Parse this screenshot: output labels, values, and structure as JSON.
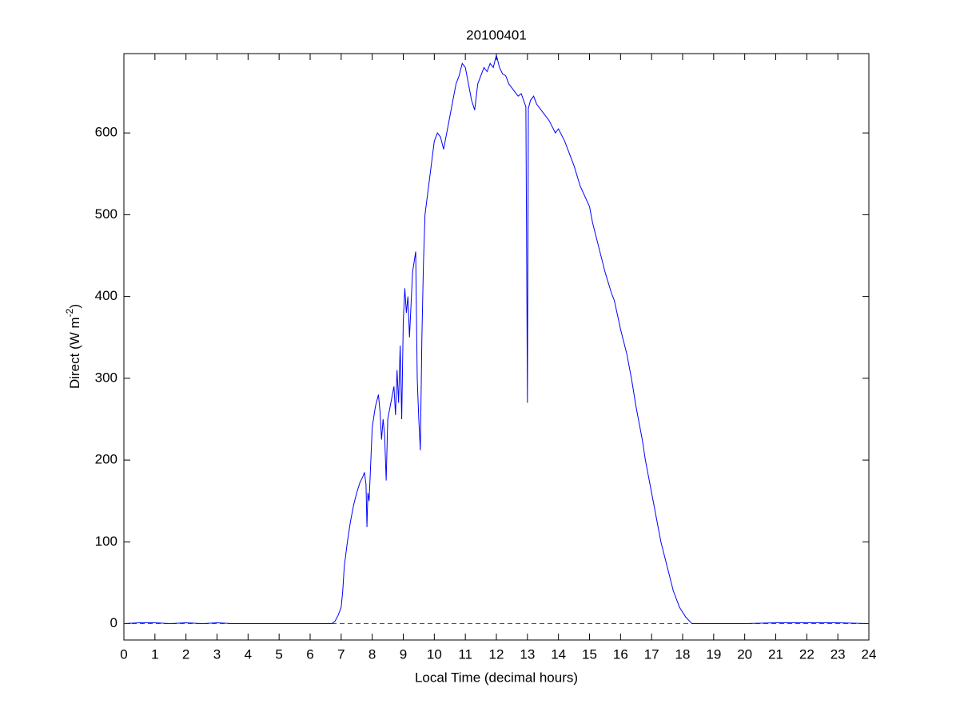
{
  "chart_data": {
    "type": "line",
    "title": "20100401",
    "xlabel": "Local Time (decimal hours)",
    "ylabel": {
      "text": "Direct (W m",
      "superscript": "-2",
      "suffix": ")"
    },
    "x": [
      0,
      0.5,
      1,
      1.5,
      2,
      2.5,
      3,
      3.5,
      4,
      5,
      6,
      6.7,
      6.8,
      6.9,
      7.0,
      7.05,
      7.1,
      7.2,
      7.3,
      7.4,
      7.5,
      7.6,
      7.7,
      7.75,
      7.8,
      7.83,
      7.86,
      7.9,
      8.0,
      8.1,
      8.2,
      8.25,
      8.3,
      8.35,
      8.4,
      8.45,
      8.5,
      8.6,
      8.7,
      8.75,
      8.8,
      8.85,
      8.9,
      8.95,
      9.0,
      9.05,
      9.1,
      9.15,
      9.2,
      9.3,
      9.4,
      9.45,
      9.5,
      9.55,
      9.6,
      9.65,
      9.7,
      9.8,
      9.9,
      10.0,
      10.1,
      10.2,
      10.3,
      10.4,
      10.5,
      10.6,
      10.7,
      10.8,
      10.9,
      11.0,
      11.1,
      11.2,
      11.3,
      11.4,
      11.5,
      11.6,
      11.7,
      11.8,
      11.9,
      12.0,
      12.1,
      12.2,
      12.3,
      12.4,
      12.5,
      12.6,
      12.7,
      12.8,
      12.95,
      13.0,
      13.03,
      13.1,
      13.2,
      13.3,
      13.5,
      13.7,
      13.9,
      14.0,
      14.2,
      14.5,
      14.7,
      15.0,
      15.1,
      15.3,
      15.5,
      15.7,
      15.8,
      16.0,
      16.2,
      16.35,
      16.5,
      16.7,
      16.8,
      17.0,
      17.2,
      17.3,
      17.5,
      17.7,
      17.9,
      18.1,
      18.3,
      19,
      20,
      21,
      22,
      23,
      24
    ],
    "series": [
      {
        "color": "#0000ff",
        "values": [
          0,
          1,
          1,
          0,
          1,
          0,
          1,
          0,
          0,
          0,
          0,
          0,
          3,
          10,
          20,
          40,
          70,
          100,
          125,
          145,
          160,
          172,
          180,
          185,
          170,
          118,
          160,
          150,
          240,
          265,
          280,
          260,
          225,
          250,
          230,
          175,
          250,
          270,
          290,
          255,
          310,
          270,
          340,
          250,
          370,
          410,
          380,
          400,
          350,
          430,
          455,
          300,
          250,
          212,
          350,
          440,
          500,
          530,
          560,
          590,
          600,
          595,
          580,
          600,
          620,
          640,
          660,
          670,
          685,
          680,
          660,
          640,
          628,
          660,
          670,
          680,
          675,
          685,
          680,
          695,
          680,
          672,
          670,
          660,
          655,
          650,
          645,
          648,
          632,
          270,
          630,
          640,
          645,
          635,
          625,
          615,
          600,
          605,
          590,
          560,
          535,
          510,
          490,
          460,
          430,
          405,
          395,
          360,
          330,
          300,
          265,
          225,
          200,
          160,
          120,
          100,
          70,
          40,
          20,
          8,
          0,
          0,
          0,
          1,
          1,
          1,
          0
        ]
      }
    ],
    "hline": {
      "value": 0,
      "color": "#ff0000",
      "dash": true
    },
    "xlim": [
      0,
      24
    ],
    "xticks": [
      0,
      1,
      2,
      3,
      4,
      5,
      6,
      7,
      8,
      9,
      10,
      11,
      12,
      13,
      14,
      15,
      16,
      17,
      18,
      19,
      20,
      21,
      22,
      23,
      24
    ],
    "ylim": [
      -20,
      697
    ],
    "yticks": [
      0,
      100,
      200,
      300,
      400,
      500,
      600
    ],
    "grid": false
  }
}
